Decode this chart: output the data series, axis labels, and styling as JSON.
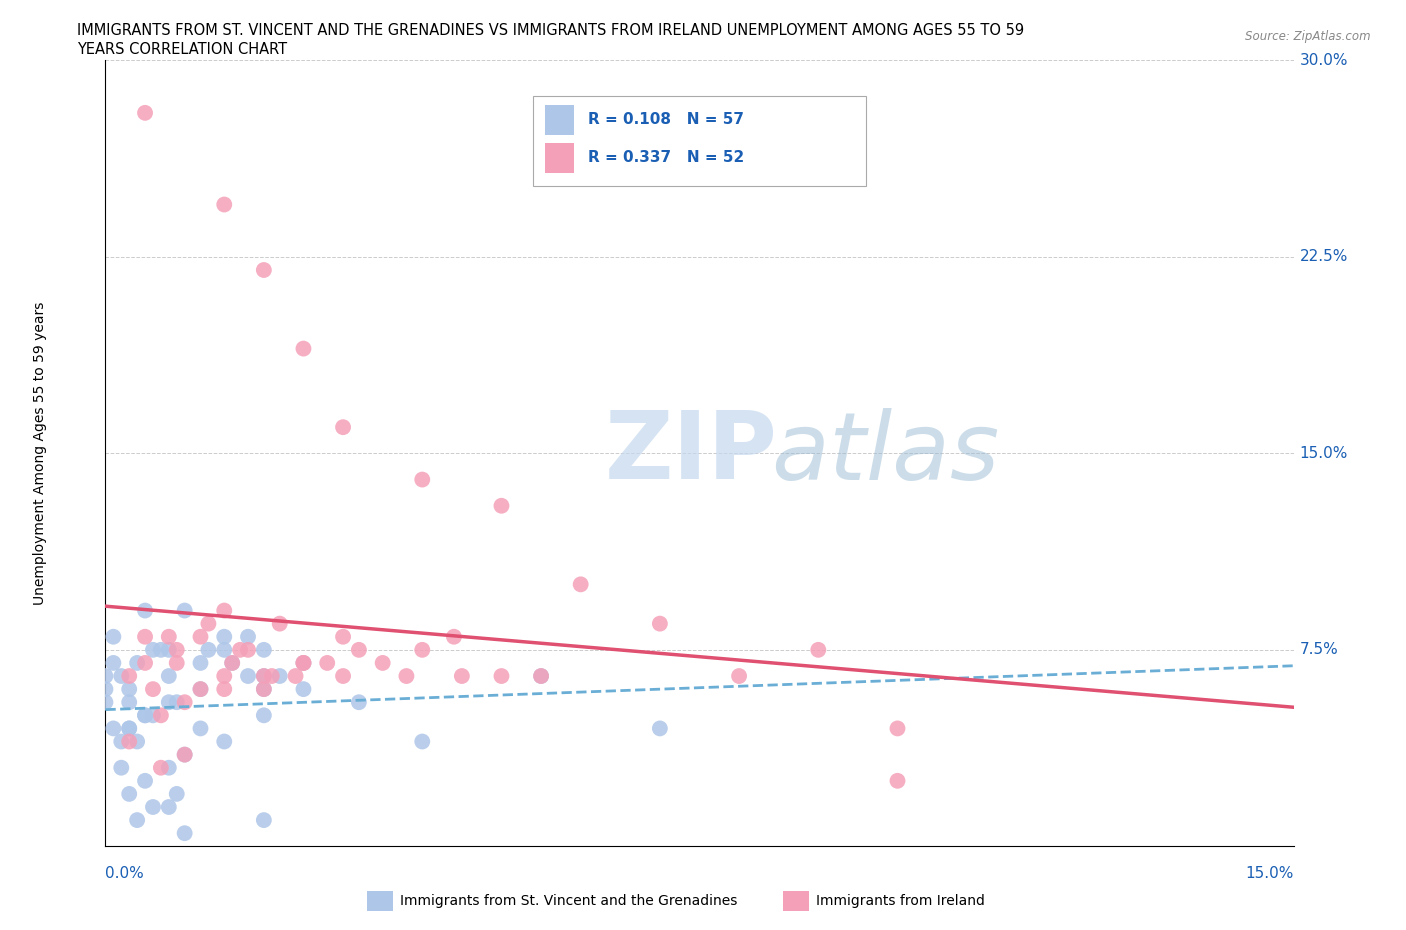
{
  "title_line1": "IMMIGRANTS FROM ST. VINCENT AND THE GRENADINES VS IMMIGRANTS FROM IRELAND UNEMPLOYMENT AMONG AGES 55 TO 59",
  "title_line2": "YEARS CORRELATION CHART",
  "source_text": "Source: ZipAtlas.com",
  "ylabel": "Unemployment Among Ages 55 to 59 years",
  "xlim": [
    0.0,
    0.15
  ],
  "ylim": [
    0.0,
    0.3
  ],
  "r_blue": 0.108,
  "n_blue": 57,
  "r_pink": 0.337,
  "n_pink": 52,
  "blue_color": "#aec6e8",
  "blue_line_color": "#6aaed6",
  "pink_color": "#f4a0b8",
  "pink_line_color": "#e05070",
  "legend_entries": [
    {
      "label": "Immigrants from St. Vincent and the Grenadines",
      "color": "#aec6e8"
    },
    {
      "label": "Immigrants from Ireland",
      "color": "#f4a0b8"
    }
  ],
  "blue_scatter": [
    [
      0.0,
      0.055
    ],
    [
      0.0,
      0.06
    ],
    [
      0.0,
      0.065
    ],
    [
      0.001,
      0.07
    ],
    [
      0.001,
      0.045
    ],
    [
      0.001,
      0.08
    ],
    [
      0.002,
      0.04
    ],
    [
      0.002,
      0.065
    ],
    [
      0.002,
      0.03
    ],
    [
      0.003,
      0.06
    ],
    [
      0.003,
      0.045
    ],
    [
      0.003,
      0.055
    ],
    [
      0.003,
      0.045
    ],
    [
      0.003,
      0.02
    ],
    [
      0.004,
      0.04
    ],
    [
      0.004,
      0.07
    ],
    [
      0.004,
      0.01
    ],
    [
      0.005,
      0.09
    ],
    [
      0.005,
      0.05
    ],
    [
      0.005,
      0.05
    ],
    [
      0.005,
      0.025
    ],
    [
      0.006,
      0.05
    ],
    [
      0.006,
      0.075
    ],
    [
      0.006,
      0.015
    ],
    [
      0.007,
      0.075
    ],
    [
      0.008,
      0.075
    ],
    [
      0.008,
      0.065
    ],
    [
      0.008,
      0.03
    ],
    [
      0.008,
      0.055
    ],
    [
      0.008,
      0.015
    ],
    [
      0.009,
      0.055
    ],
    [
      0.009,
      0.02
    ],
    [
      0.01,
      0.09
    ],
    [
      0.01,
      0.035
    ],
    [
      0.01,
      0.005
    ],
    [
      0.012,
      0.07
    ],
    [
      0.012,
      0.06
    ],
    [
      0.012,
      0.045
    ],
    [
      0.013,
      0.075
    ],
    [
      0.015,
      0.075
    ],
    [
      0.015,
      0.08
    ],
    [
      0.015,
      0.04
    ],
    [
      0.016,
      0.07
    ],
    [
      0.018,
      0.065
    ],
    [
      0.018,
      0.08
    ],
    [
      0.02,
      0.06
    ],
    [
      0.02,
      0.065
    ],
    [
      0.02,
      0.075
    ],
    [
      0.02,
      0.05
    ],
    [
      0.02,
      0.01
    ],
    [
      0.022,
      0.065
    ],
    [
      0.025,
      0.07
    ],
    [
      0.025,
      0.06
    ],
    [
      0.032,
      0.055
    ],
    [
      0.04,
      0.04
    ],
    [
      0.055,
      0.065
    ],
    [
      0.07,
      0.045
    ]
  ],
  "pink_scatter": [
    [
      0.003,
      0.065
    ],
    [
      0.003,
      0.04
    ],
    [
      0.005,
      0.28
    ],
    [
      0.005,
      0.07
    ],
    [
      0.005,
      0.08
    ],
    [
      0.006,
      0.06
    ],
    [
      0.007,
      0.05
    ],
    [
      0.007,
      0.03
    ],
    [
      0.008,
      0.08
    ],
    [
      0.009,
      0.075
    ],
    [
      0.009,
      0.07
    ],
    [
      0.01,
      0.055
    ],
    [
      0.01,
      0.035
    ],
    [
      0.012,
      0.08
    ],
    [
      0.012,
      0.06
    ],
    [
      0.013,
      0.085
    ],
    [
      0.015,
      0.245
    ],
    [
      0.015,
      0.09
    ],
    [
      0.015,
      0.065
    ],
    [
      0.015,
      0.06
    ],
    [
      0.016,
      0.07
    ],
    [
      0.017,
      0.075
    ],
    [
      0.018,
      0.075
    ],
    [
      0.02,
      0.22
    ],
    [
      0.02,
      0.065
    ],
    [
      0.02,
      0.06
    ],
    [
      0.021,
      0.065
    ],
    [
      0.022,
      0.085
    ],
    [
      0.024,
      0.065
    ],
    [
      0.025,
      0.19
    ],
    [
      0.025,
      0.07
    ],
    [
      0.025,
      0.07
    ],
    [
      0.028,
      0.07
    ],
    [
      0.03,
      0.16
    ],
    [
      0.03,
      0.065
    ],
    [
      0.03,
      0.08
    ],
    [
      0.032,
      0.075
    ],
    [
      0.035,
      0.07
    ],
    [
      0.038,
      0.065
    ],
    [
      0.04,
      0.14
    ],
    [
      0.04,
      0.075
    ],
    [
      0.044,
      0.08
    ],
    [
      0.045,
      0.065
    ],
    [
      0.05,
      0.13
    ],
    [
      0.05,
      0.065
    ],
    [
      0.055,
      0.065
    ],
    [
      0.06,
      0.1
    ],
    [
      0.07,
      0.085
    ],
    [
      0.08,
      0.065
    ],
    [
      0.09,
      0.075
    ],
    [
      0.1,
      0.045
    ],
    [
      0.1,
      0.025
    ]
  ],
  "watermark_zip": "ZIP",
  "watermark_atlas": "atlas",
  "background_color": "#ffffff",
  "grid_color": "#cccccc"
}
